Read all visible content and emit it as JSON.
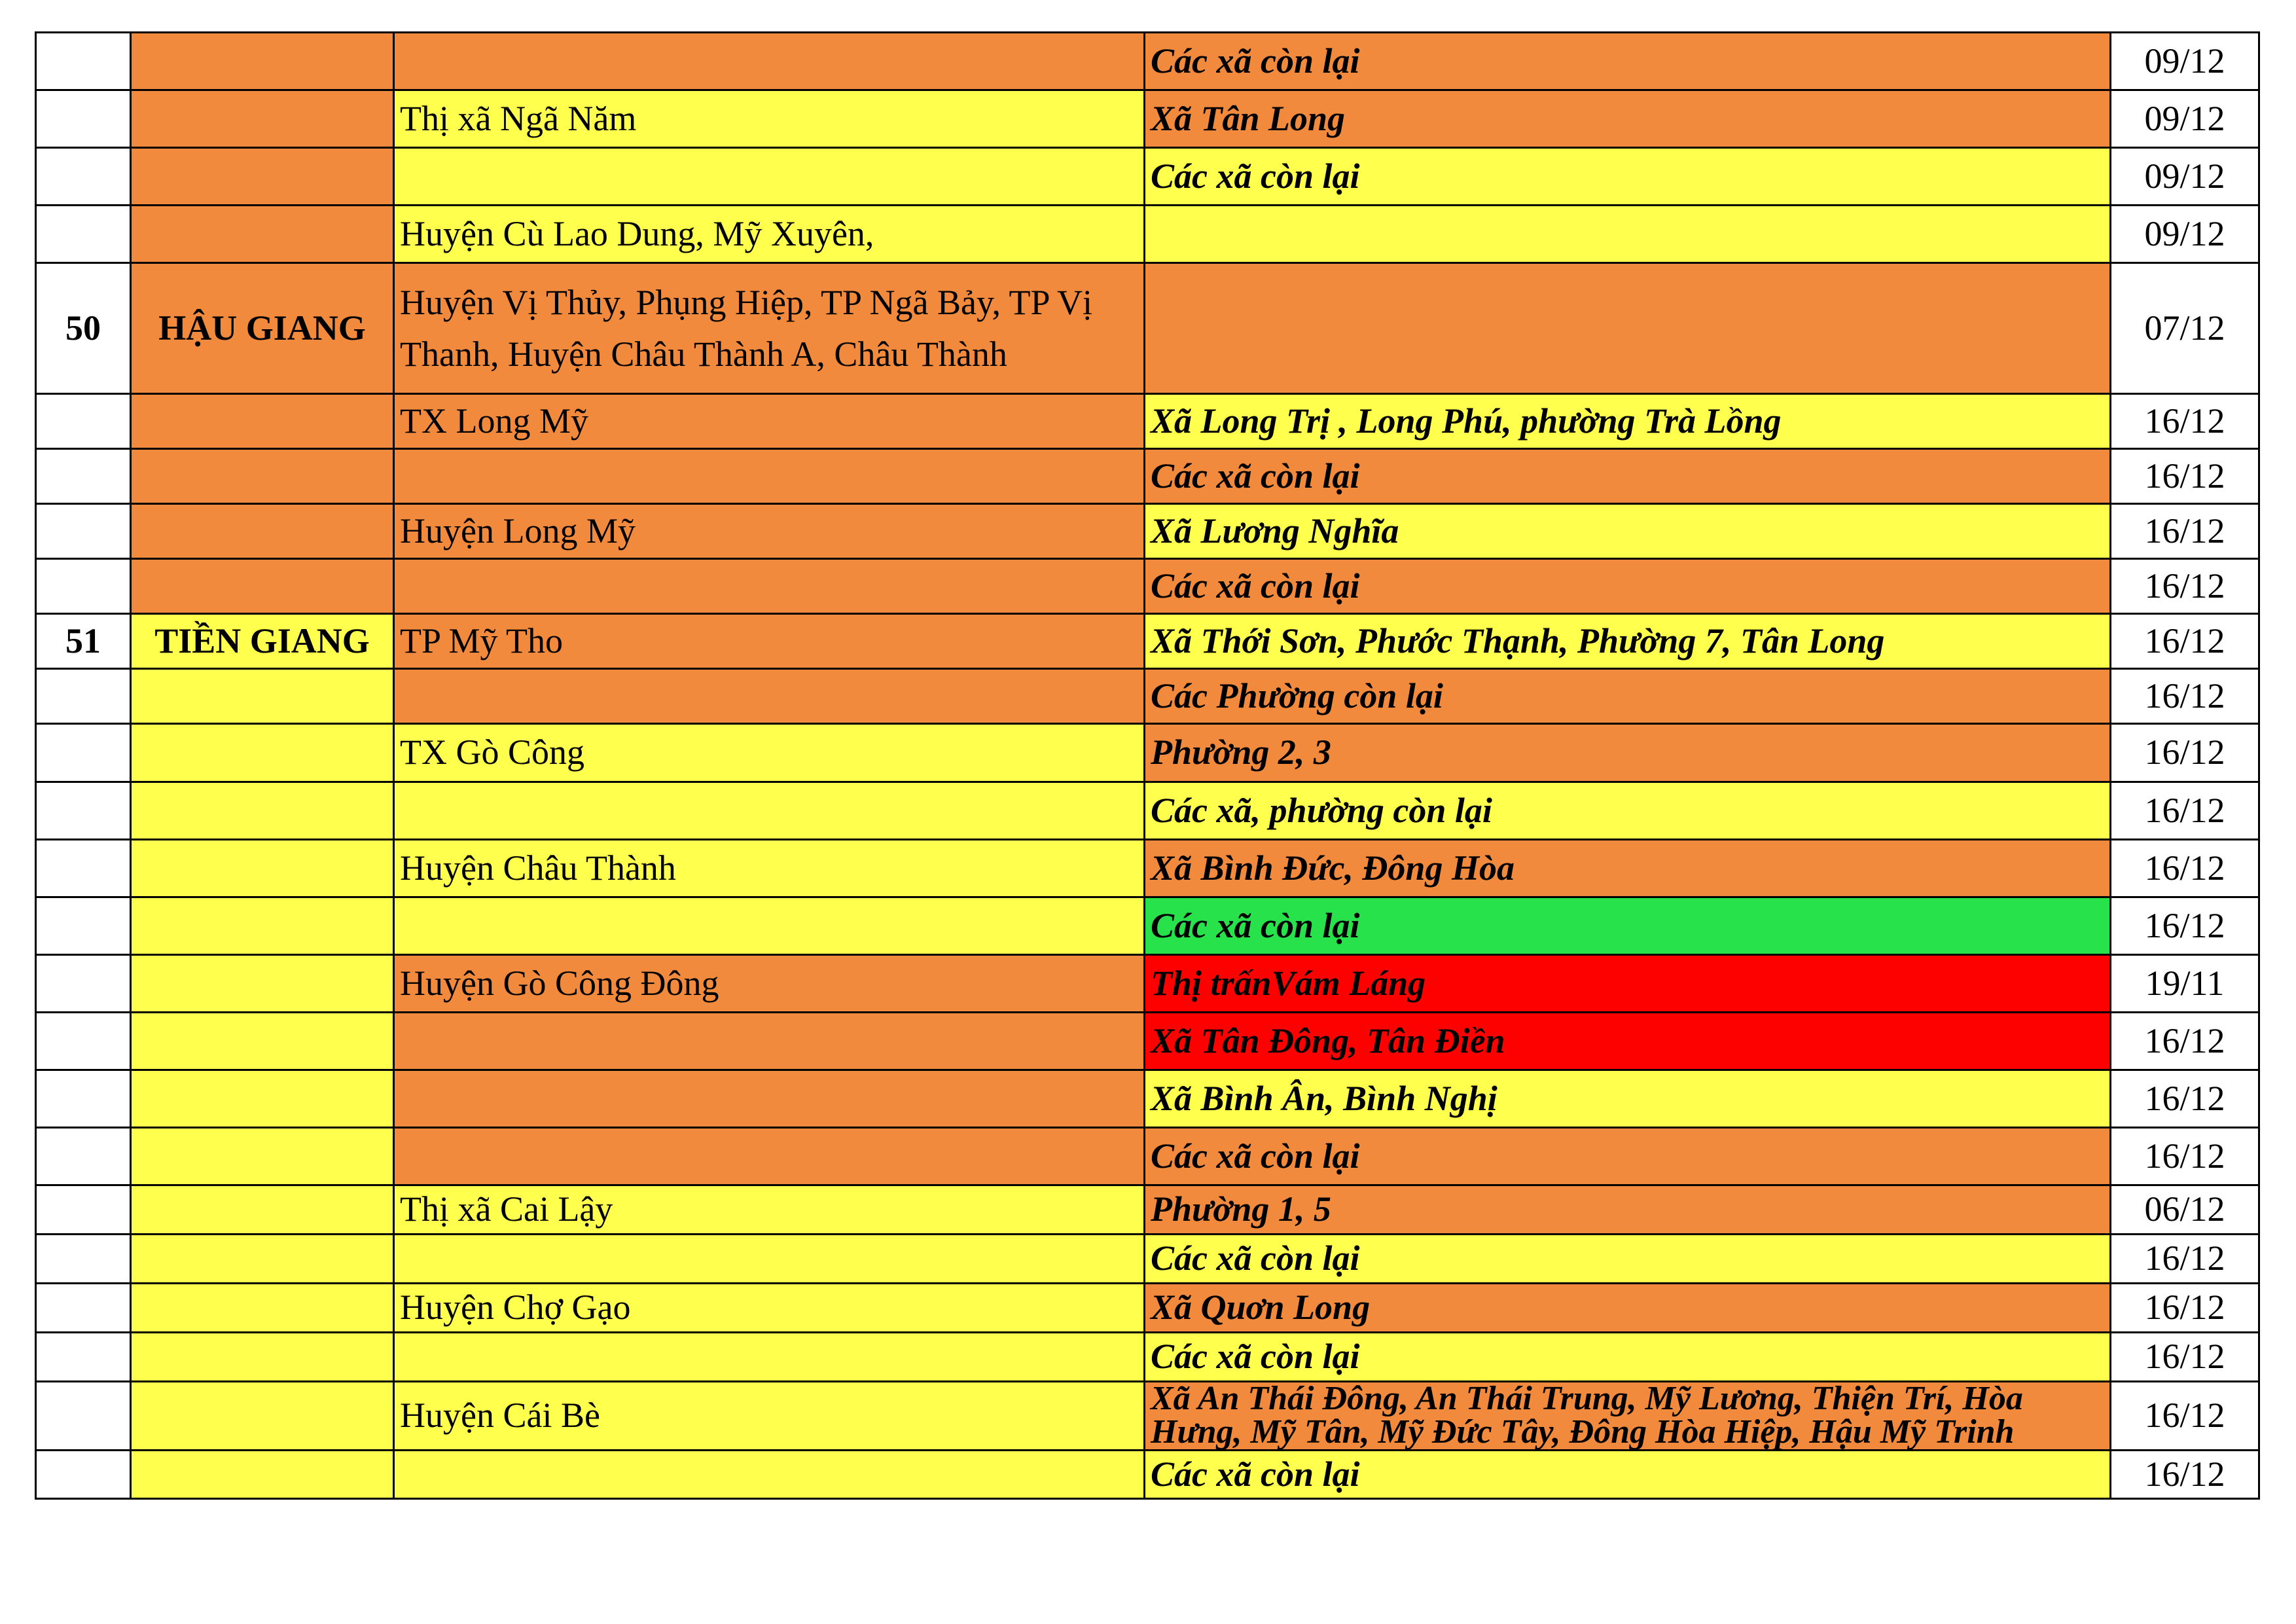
{
  "palette": {
    "orange": "#F18A3D",
    "yellow": "#FFFF4E",
    "green": "#28E24C",
    "red": "#FD0000",
    "white": "#FFFFFF",
    "border": "#000000",
    "text": "#000000"
  },
  "table": {
    "columns": [
      "no",
      "province",
      "district",
      "commune",
      "date"
    ],
    "rows": [
      {
        "no": "",
        "province": "",
        "province_bg": "orange",
        "district": "",
        "district_bg": "orange",
        "commune": "Các xã còn lại",
        "commune_bg": "orange",
        "date": "09/12"
      },
      {
        "no": "",
        "province": "",
        "province_bg": "orange",
        "district": "Thị xã Ngã Năm",
        "district_bg": "yellow",
        "commune": "Xã Tân Long",
        "commune_bg": "orange",
        "date": "09/12"
      },
      {
        "no": "",
        "province": "",
        "province_bg": "orange",
        "district": "",
        "district_bg": "yellow",
        "commune": "Các xã còn lại",
        "commune_bg": "yellow",
        "date": "09/12"
      },
      {
        "no": "",
        "province": "",
        "province_bg": "orange",
        "district": "Huyện Cù Lao Dung, Mỹ Xuyên,",
        "district_bg": "yellow",
        "commune": "",
        "commune_bg": "yellow",
        "date": "09/12"
      },
      {
        "no": "50",
        "province": "HẬU GIANG",
        "province_bg": "orange",
        "district": "Huyện Vị Thủy, Phụng Hiệp,  TP Ngã Bảy, TP Vị Thanh, Huyện Châu Thành A, Châu Thành",
        "district_bg": "orange",
        "commune": "",
        "commune_bg": "orange",
        "date": "07/12"
      },
      {
        "no": "",
        "province": "",
        "province_bg": "orange",
        "district": "TX Long Mỹ",
        "district_bg": "orange",
        "commune": "Xã Long Trị , Long Phú, phường Trà Lồng",
        "commune_bg": "yellow",
        "date": "16/12"
      },
      {
        "no": "",
        "province": "",
        "province_bg": "orange",
        "district": "",
        "district_bg": "orange",
        "commune": "Các xã còn lại",
        "commune_bg": "orange",
        "date": "16/12"
      },
      {
        "no": "",
        "province": "",
        "province_bg": "orange",
        "district": "Huyện Long Mỹ",
        "district_bg": "orange",
        "commune": "Xã Lương Nghĩa",
        "commune_bg": "yellow",
        "date": "16/12"
      },
      {
        "no": "",
        "province": "",
        "province_bg": "orange",
        "district": "",
        "district_bg": "orange",
        "commune": "Các xã còn lại",
        "commune_bg": "orange",
        "date": "16/12"
      },
      {
        "no": "51",
        "province": "TIỀN GIANG",
        "province_bg": "yellow",
        "district": "TP Mỹ Tho",
        "district_bg": "orange",
        "commune": "Xã Thới Sơn, Phước Thạnh, Phường 7, Tân Long",
        "commune_bg": "yellow",
        "date": "16/12"
      },
      {
        "no": "",
        "province": "",
        "province_bg": "yellow",
        "district": "",
        "district_bg": "orange",
        "commune": "Các Phường còn lại",
        "commune_bg": "orange",
        "date": "16/12"
      },
      {
        "no": "",
        "province": "",
        "province_bg": "yellow",
        "district": "TX Gò Công",
        "district_bg": "yellow",
        "commune": "Phường 2, 3",
        "commune_bg": "orange",
        "date": "16/12"
      },
      {
        "no": "",
        "province": "",
        "province_bg": "yellow",
        "district": "",
        "district_bg": "yellow",
        "commune": "Các xã, phường còn lại",
        "commune_bg": "yellow",
        "date": "16/12"
      },
      {
        "no": "",
        "province": "",
        "province_bg": "yellow",
        "district": "Huyện Châu Thành",
        "district_bg": "yellow",
        "commune": "Xã Bình Đức, Đông Hòa",
        "commune_bg": "orange",
        "date": "16/12"
      },
      {
        "no": "",
        "province": "",
        "province_bg": "yellow",
        "district": "",
        "district_bg": "yellow",
        "commune": "Các xã còn lại",
        "commune_bg": "green",
        "date": "16/12"
      },
      {
        "no": "",
        "province": "",
        "province_bg": "yellow",
        "district": "Huyện Gò Công Đông",
        "district_bg": "orange",
        "commune": "Thị trấnVám Láng",
        "commune_bg": "red",
        "date": "19/11"
      },
      {
        "no": "",
        "province": "",
        "province_bg": "yellow",
        "district": "",
        "district_bg": "orange",
        "commune": "Xã Tân Đông, Tân Điền",
        "commune_bg": "red",
        "date": "16/12"
      },
      {
        "no": "",
        "province": "",
        "province_bg": "yellow",
        "district": "",
        "district_bg": "orange",
        "commune": "Xã Bình Ân, Bình Nghị",
        "commune_bg": "yellow",
        "date": "16/12"
      },
      {
        "no": "",
        "province": "",
        "province_bg": "yellow",
        "district": "",
        "district_bg": "orange",
        "commune": "Các xã còn lại",
        "commune_bg": "orange",
        "date": "16/12"
      },
      {
        "no": "",
        "province": "",
        "province_bg": "yellow",
        "district": "Thị xã Cai Lậy",
        "district_bg": "yellow",
        "commune": "Phường 1, 5",
        "commune_bg": "orange",
        "date": "06/12"
      },
      {
        "no": "",
        "province": "",
        "province_bg": "yellow",
        "district": "",
        "district_bg": "yellow",
        "commune": "Các xã còn lại",
        "commune_bg": "yellow",
        "date": "16/12"
      },
      {
        "no": "",
        "province": "",
        "province_bg": "yellow",
        "district": "Huyện Chợ Gạo",
        "district_bg": "yellow",
        "commune": "Xã Quơn Long",
        "commune_bg": "orange",
        "date": "16/12"
      },
      {
        "no": "",
        "province": "",
        "province_bg": "yellow",
        "district": "",
        "district_bg": "yellow",
        "commune": "Các xã còn lại",
        "commune_bg": "yellow",
        "date": "16/12"
      },
      {
        "no": "",
        "province": "",
        "province_bg": "yellow",
        "district": "Huyện Cái Bè",
        "district_bg": "yellow",
        "commune": "Xã An Thái Đông, An Thái Trung, Mỹ Lương, Thiện Trí, Hòa Hưng, Mỹ Tân, Mỹ Đức Tây, Đông Hòa Hiệp, Hậu Mỹ Trinh",
        "commune_bg": "orange",
        "date": "16/12"
      },
      {
        "no": "",
        "province": "",
        "province_bg": "yellow",
        "district": "",
        "district_bg": "yellow",
        "commune": "Các xã còn lại",
        "commune_bg": "yellow",
        "date": "16/12"
      }
    ]
  }
}
